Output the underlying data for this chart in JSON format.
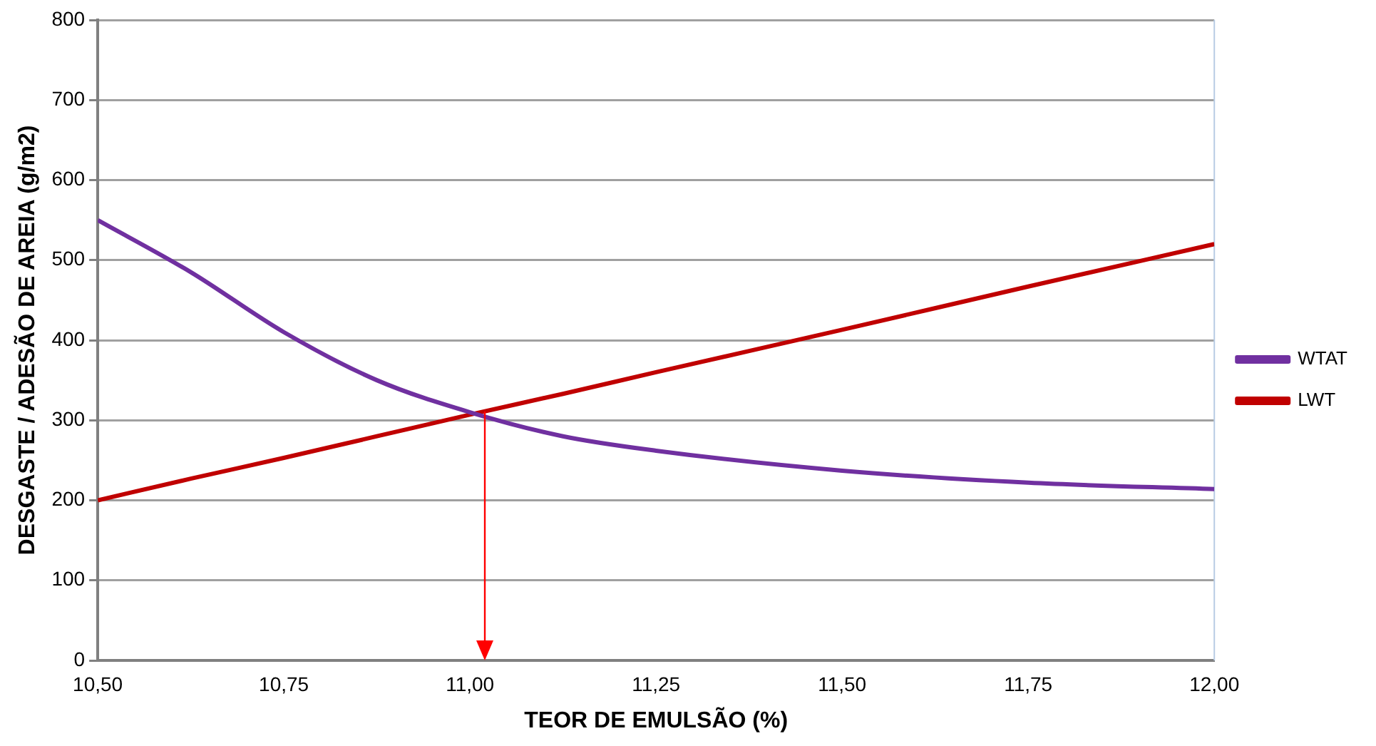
{
  "chart_data": {
    "type": "line",
    "xlabel": "TEOR DE EMULSÃO (%)",
    "ylabel": "DESGASTE / ADESÃO DE AREIA (g/m2)",
    "x": [
      10.5,
      10.625,
      10.75,
      10.875,
      11.0,
      11.125,
      11.25,
      11.5,
      11.75,
      12.0
    ],
    "series": [
      {
        "name": "WTAT",
        "color": "#7030a0",
        "values": [
          550,
          485,
          410,
          350,
          310,
          280,
          262,
          237,
          222,
          214
        ]
      },
      {
        "name": "LWT",
        "color": "#c00000",
        "values": [
          200,
          227,
          253,
          280,
          307,
          333,
          360,
          413,
          467,
          520
        ]
      }
    ],
    "xlim": [
      10.5,
      12.0
    ],
    "xticks": [
      {
        "value": 10.5,
        "label": "10,50"
      },
      {
        "value": 10.75,
        "label": "10,75"
      },
      {
        "value": 11.0,
        "label": "11,00"
      },
      {
        "value": 11.25,
        "label": "11,25"
      },
      {
        "value": 11.5,
        "label": "11,50"
      },
      {
        "value": 11.75,
        "label": "11,75"
      },
      {
        "value": 12.0,
        "label": "12,00"
      }
    ],
    "ylim": [
      0,
      800
    ],
    "yticks": [
      0,
      100,
      200,
      300,
      400,
      500,
      600,
      700,
      800
    ],
    "grid": "y",
    "legend": "right",
    "marker": "none",
    "line_style": "solid",
    "ref_lines": [
      {
        "axis": "x",
        "value": 11.02,
        "color": "#ff0000"
      }
    ]
  }
}
